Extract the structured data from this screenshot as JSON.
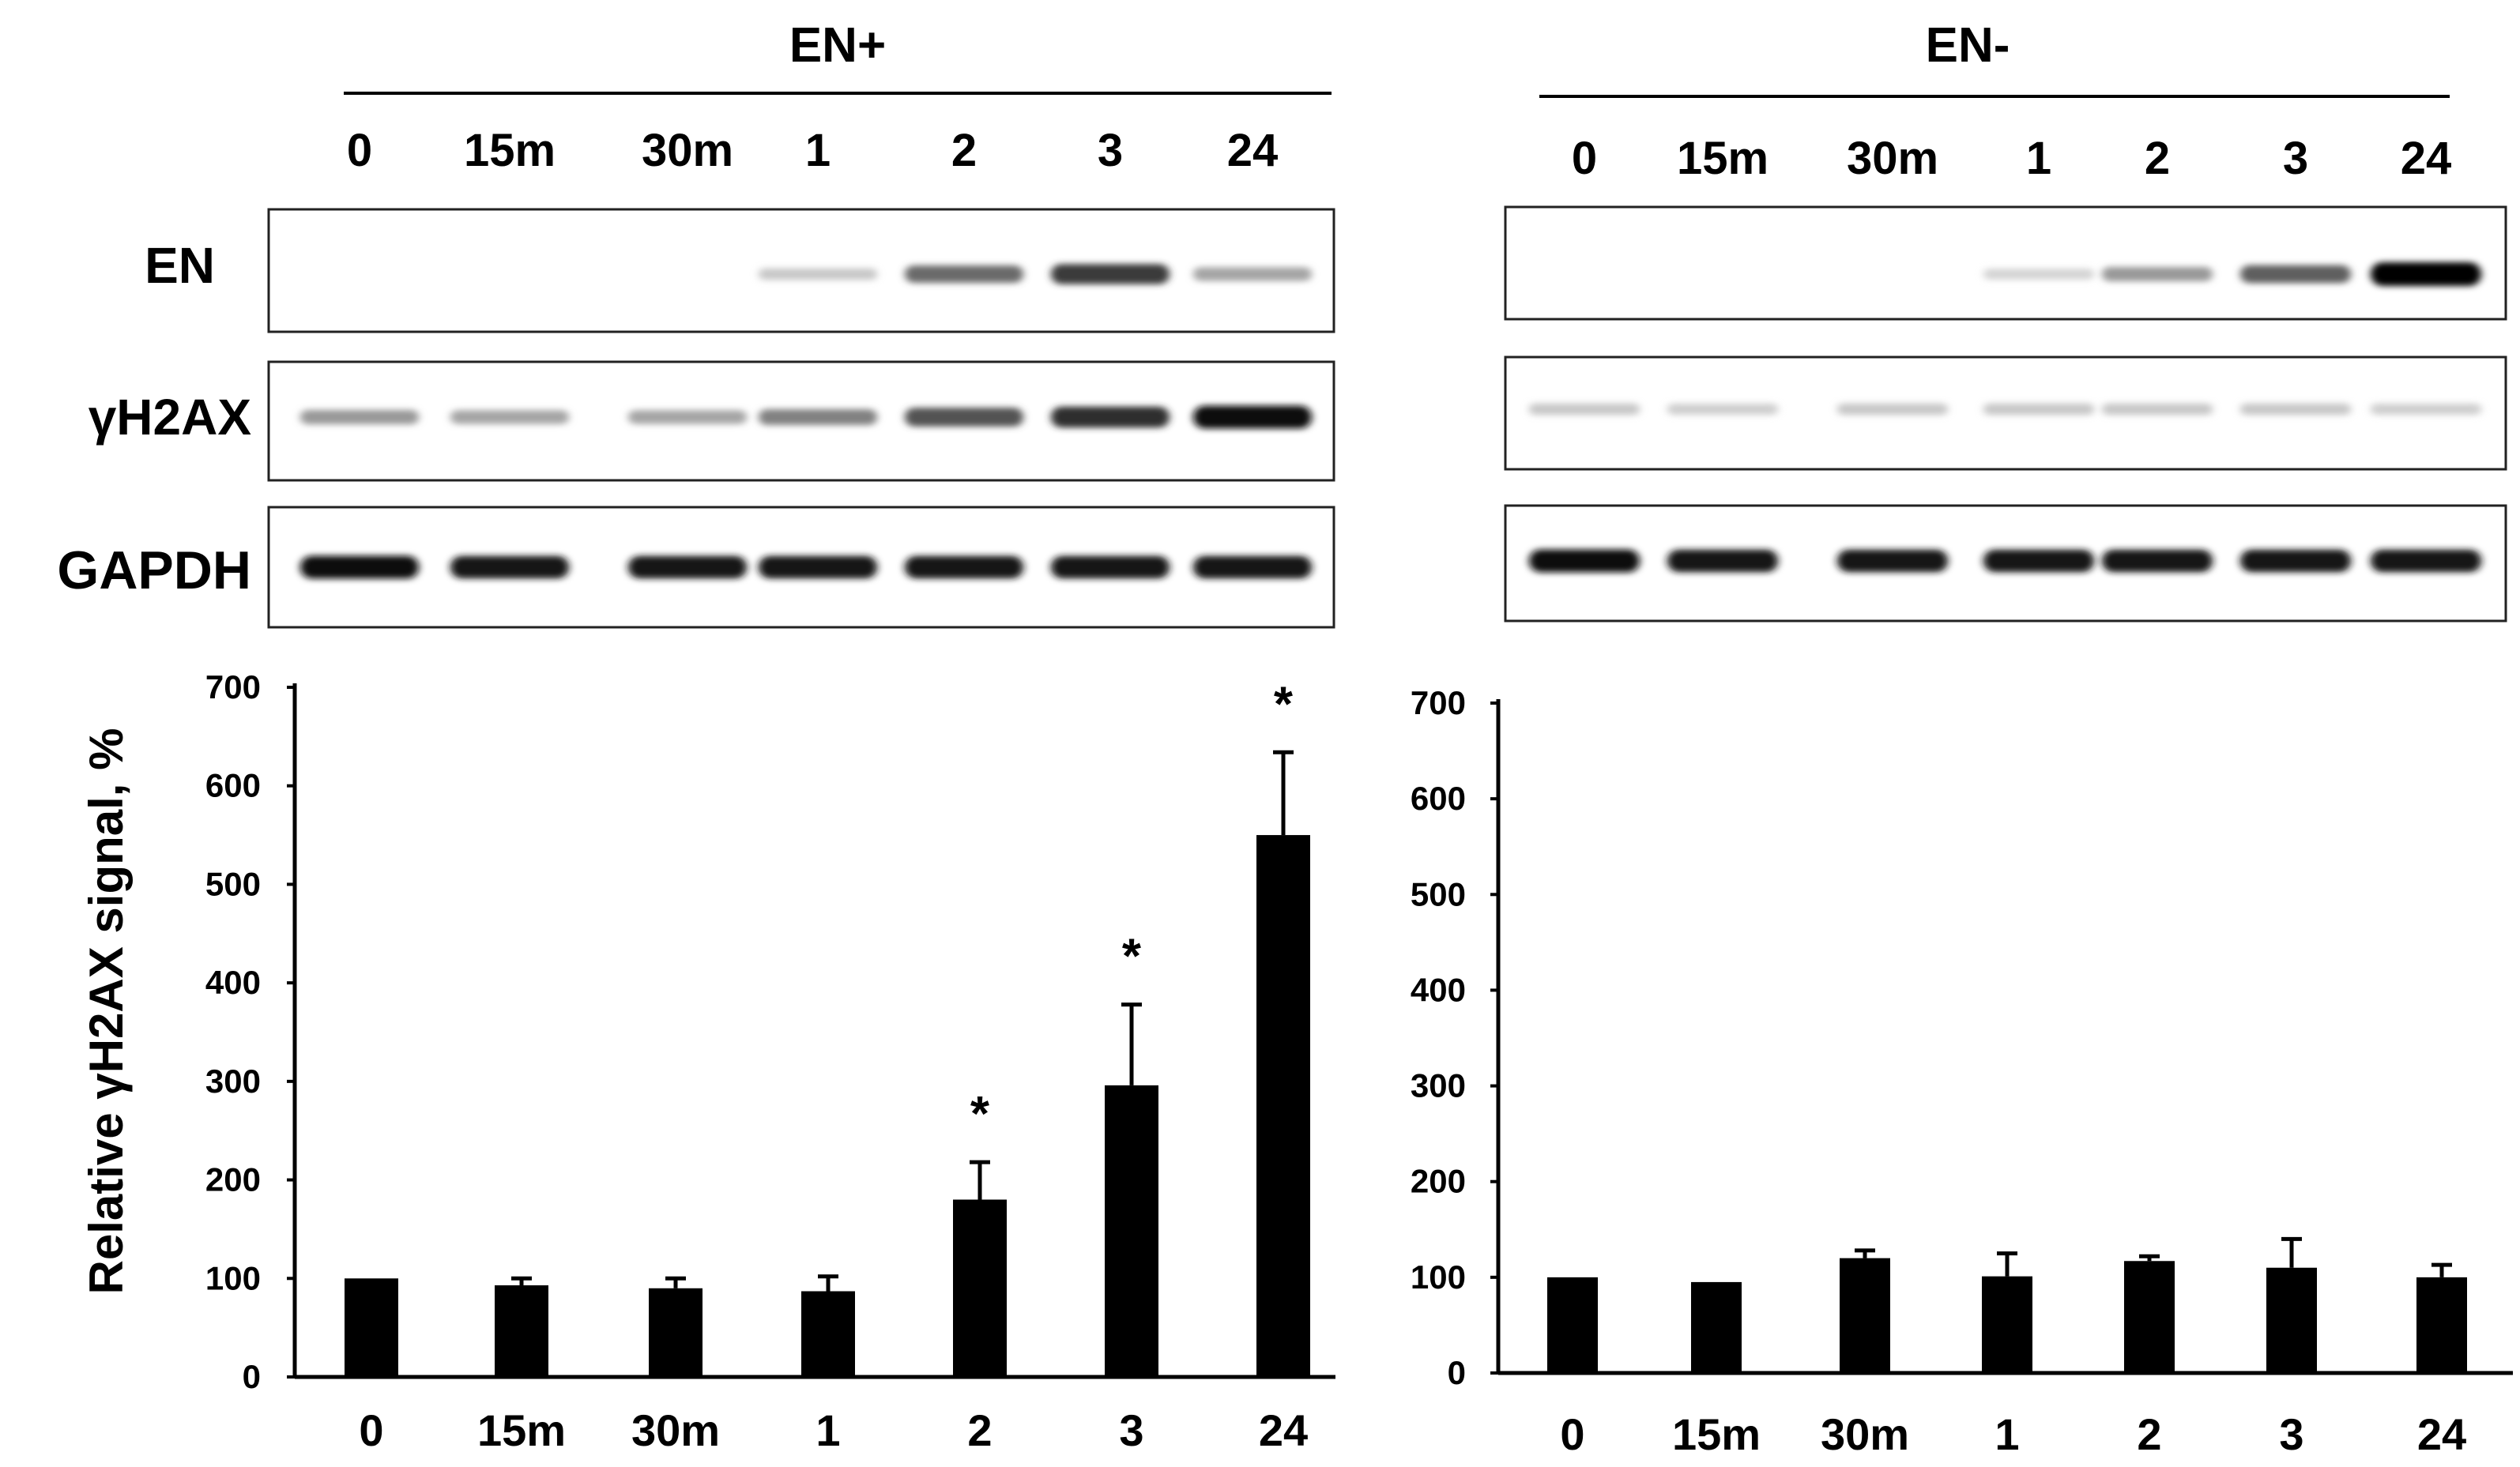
{
  "panels": [
    {
      "group_label": "EN+",
      "lanes": [
        "0",
        "15m",
        "30m",
        "1",
        "2",
        "3",
        "24"
      ],
      "blots": [
        {
          "label": "EN",
          "intensities": [
            0.0,
            0.0,
            0.0,
            0.15,
            0.55,
            0.75,
            0.3
          ]
        },
        {
          "label": "γH2AX",
          "intensities": [
            0.35,
            0.3,
            0.3,
            0.45,
            0.65,
            0.8,
            0.95
          ]
        },
        {
          "label": "GAPDH",
          "intensities": [
            0.95,
            0.92,
            0.92,
            0.92,
            0.92,
            0.92,
            0.92
          ]
        }
      ]
    },
    {
      "group_label": "EN-",
      "lanes": [
        "0",
        "15m",
        "30m",
        "1",
        "2",
        "3",
        "24"
      ],
      "blots": [
        {
          "label": "",
          "intensities": [
            0.0,
            0.0,
            0.0,
            0.1,
            0.35,
            0.6,
            1.0
          ]
        },
        {
          "label": "",
          "intensities": [
            0.15,
            0.12,
            0.15,
            0.15,
            0.15,
            0.15,
            0.12
          ]
        },
        {
          "label": "",
          "intensities": [
            0.95,
            0.92,
            0.92,
            0.92,
            0.92,
            0.92,
            0.92
          ]
        }
      ]
    }
  ],
  "chart_data": [
    {
      "type": "bar",
      "title": "",
      "xlabel": "",
      "ylabel": "Relative γH2AX signal, %",
      "categories": [
        "0",
        "15m",
        "30m",
        "1",
        "2",
        "3",
        "24"
      ],
      "values": [
        100,
        93,
        90,
        87,
        180,
        296,
        550
      ],
      "errors": [
        0,
        7,
        10,
        15,
        38,
        82,
        84
      ],
      "significance": [
        "",
        "",
        "",
        "",
        "*",
        "*",
        "*"
      ],
      "ylim": [
        0,
        700
      ],
      "yticks": [
        0,
        100,
        200,
        300,
        400,
        500,
        600,
        700
      ],
      "grid": false,
      "bar_color": "#000000"
    },
    {
      "type": "bar",
      "title": "",
      "xlabel": "",
      "ylabel": "",
      "categories": [
        "0",
        "15m",
        "30m",
        "1",
        "2",
        "3",
        "24"
      ],
      "values": [
        100,
        95,
        120,
        101,
        117,
        110,
        100
      ],
      "errors": [
        0,
        0,
        8,
        24,
        5,
        30,
        13
      ],
      "significance": [
        "",
        "",
        "",
        "",
        "",
        "",
        ""
      ],
      "ylim": [
        0,
        700
      ],
      "yticks": [
        0,
        100,
        200,
        300,
        400,
        500,
        600,
        700
      ],
      "grid": false,
      "bar_color": "#000000"
    }
  ]
}
